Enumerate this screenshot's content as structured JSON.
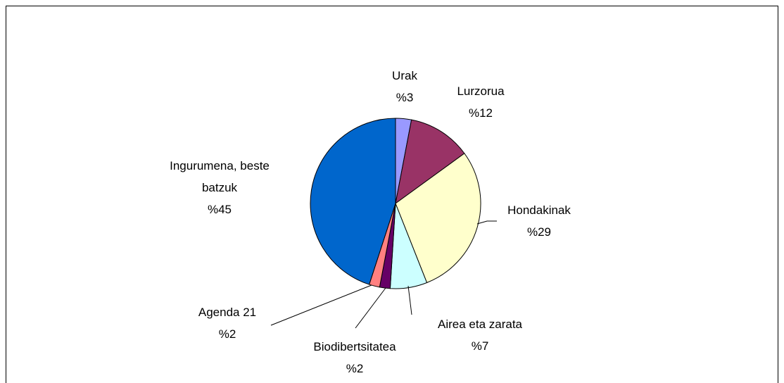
{
  "chart_data": {
    "type": "pie",
    "categories": [
      "Urak",
      "Lurzorua",
      "Hondakinak",
      "Airea eta zarata",
      "Biodibertsitatea",
      "Agenda 21",
      "Ingurumena, beste batzuk"
    ],
    "values": [
      3,
      12,
      29,
      7,
      2,
      2,
      45
    ],
    "value_labels": [
      "%3",
      "%12",
      "%29",
      "%7",
      "%2",
      "%2",
      "%45"
    ],
    "colors": [
      "#9999ff",
      "#993366",
      "#ffffcc",
      "#ccffff",
      "#660066",
      "#ff8080",
      "#0066cc"
    ]
  }
}
